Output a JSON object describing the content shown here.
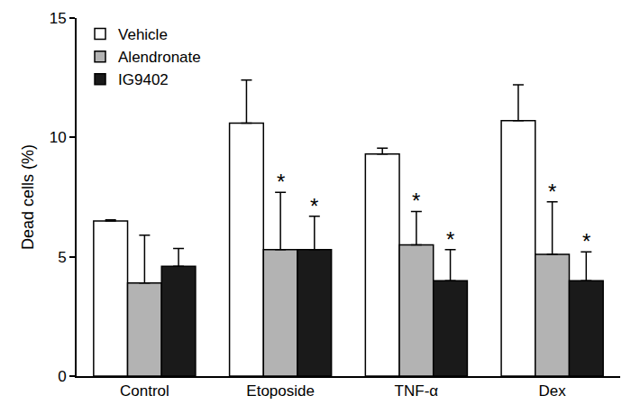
{
  "chart_data": {
    "type": "bar",
    "y_label": "Dead cells (%)",
    "categories": [
      "Control",
      "Etoposide",
      "TNF-α",
      "Dex"
    ],
    "series": [
      {
        "name": "Vehicle",
        "color": "#ffffff",
        "values": [
          6.5,
          10.6,
          9.3,
          10.7
        ],
        "errors": [
          0.05,
          1.8,
          0.25,
          1.5
        ]
      },
      {
        "name": "Alendronate",
        "color": "#b3b3b3",
        "values": [
          3.9,
          5.3,
          5.5,
          5.1
        ],
        "errors": [
          2.0,
          2.4,
          1.4,
          2.2
        ]
      },
      {
        "name": "IG9402",
        "color": "#1a1a1a",
        "values": [
          4.6,
          5.3,
          4.0,
          4.0
        ],
        "errors": [
          0.75,
          1.4,
          1.3,
          1.2
        ]
      }
    ],
    "annotations": [
      {
        "text": "*",
        "category": "Etoposide",
        "series": "Alendronate"
      },
      {
        "text": "*",
        "category": "Etoposide",
        "series": "IG9402"
      },
      {
        "text": "*",
        "category": "TNF-α",
        "series": "Alendronate"
      },
      {
        "text": "*",
        "category": "TNF-α",
        "series": "IG9402"
      },
      {
        "text": "*",
        "category": "Dex",
        "series": "Alendronate"
      },
      {
        "text": "*",
        "category": "Dex",
        "series": "IG9402"
      }
    ],
    "ylim": [
      0,
      15
    ],
    "yticks": [
      0,
      5,
      10,
      15
    ],
    "legend": "top-left",
    "grid": false
  }
}
